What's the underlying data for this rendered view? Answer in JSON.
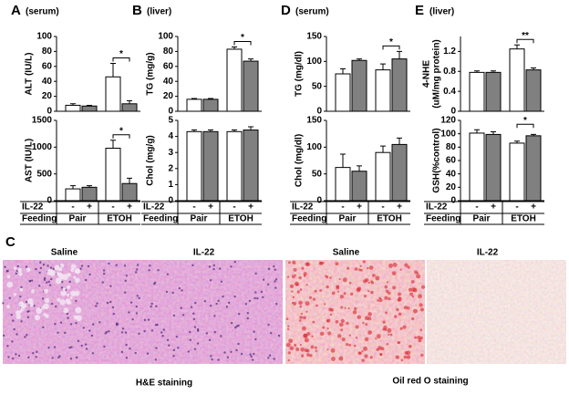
{
  "panels": [
    {
      "letter": "A",
      "label": "(serum)",
      "il22": {
        "label": "IL-22",
        "values": [
          "-",
          "+",
          "-",
          "+"
        ]
      },
      "feeding": {
        "label": "Feeding",
        "groups": [
          "Pair",
          "ETOH"
        ]
      }
    },
    {
      "letter": "B",
      "label": "(liver)",
      "il22": {
        "label": "IL-22",
        "values": [
          "-",
          "+",
          "-",
          "+"
        ]
      },
      "feeding": {
        "label": "Feeding",
        "groups": [
          "Pair",
          "ETOH"
        ]
      }
    },
    {
      "letter": "D",
      "label": "(serum)",
      "il22": {
        "label": "IL-22",
        "values": [
          "-",
          "+",
          "-",
          "+"
        ]
      },
      "feeding": {
        "label": "Feeding",
        "groups": [
          "Pair",
          "ETOH"
        ]
      }
    },
    {
      "letter": "E",
      "label": "(liver)",
      "il22": {
        "label": "IL-22",
        "values": [
          "-",
          "+",
          "-",
          "+"
        ]
      },
      "feeding": {
        "label": "Feeding",
        "groups": [
          "Pair",
          "ETOH"
        ]
      }
    }
  ],
  "chart_data": [
    {
      "type": "bar",
      "ylabel": "ALT (IU/L)",
      "values": [
        8,
        7,
        46,
        10
      ],
      "errors": [
        2,
        1,
        18,
        4
      ],
      "colors": [
        "#ffffff",
        "#808080",
        "#ffffff",
        "#808080"
      ],
      "ylim": [
        0,
        100
      ],
      "yticks": [
        0,
        20,
        40,
        60,
        80,
        100
      ],
      "significance": {
        "label": "*",
        "between": [
          2,
          3
        ]
      }
    },
    {
      "type": "bar",
      "ylabel": "AST (IU/L)",
      "values": [
        220,
        250,
        980,
        320
      ],
      "errors": [
        60,
        30,
        150,
        100
      ],
      "colors": [
        "#ffffff",
        "#808080",
        "#ffffff",
        "#808080"
      ],
      "ylim": [
        0,
        1500
      ],
      "yticks": [
        0,
        500,
        1000,
        1500
      ],
      "significance": {
        "label": "*",
        "between": [
          2,
          3
        ]
      }
    },
    {
      "type": "bar",
      "ylabel": "TG (mg/g)",
      "values": [
        16,
        16,
        83,
        67
      ],
      "errors": [
        1,
        1,
        3,
        3
      ],
      "colors": [
        "#ffffff",
        "#808080",
        "#ffffff",
        "#808080"
      ],
      "ylim": [
        0,
        100
      ],
      "yticks": [
        0,
        20,
        40,
        60,
        80,
        100
      ],
      "significance": {
        "label": "*",
        "between": [
          2,
          3
        ]
      }
    },
    {
      "type": "bar",
      "ylabel": "Chol (mg/g)",
      "values": [
        4.3,
        4.3,
        4.3,
        4.4
      ],
      "errors": [
        0.1,
        0.1,
        0.1,
        0.2
      ],
      "colors": [
        "#ffffff",
        "#808080",
        "#ffffff",
        "#808080"
      ],
      "ylim": [
        0,
        5
      ],
      "yticks": [
        0,
        1,
        2,
        3,
        4,
        5
      ]
    },
    {
      "type": "bar",
      "ylabel": "TG (mg/dl)",
      "values": [
        75,
        102,
        83,
        105
      ],
      "errors": [
        10,
        3,
        12,
        15
      ],
      "colors": [
        "#ffffff",
        "#808080",
        "#ffffff",
        "#808080"
      ],
      "ylim": [
        0,
        150
      ],
      "yticks": [
        0,
        50,
        100,
        150
      ],
      "significance": {
        "label": "*",
        "between": [
          2,
          3
        ]
      }
    },
    {
      "type": "bar",
      "ylabel": "Chol (mg/dl)",
      "values": [
        62,
        55,
        90,
        105
      ],
      "errors": [
        25,
        10,
        12,
        12
      ],
      "colors": [
        "#ffffff",
        "#808080",
        "#ffffff",
        "#808080"
      ],
      "ylim": [
        0,
        150
      ],
      "yticks": [
        0,
        50,
        100,
        150
      ]
    },
    {
      "type": "bar",
      "ylabel": [
        "4-NHE",
        "(uM/mg protein)"
      ],
      "values": [
        0.78,
        0.78,
        1.25,
        0.83
      ],
      "errors": [
        0.03,
        0.03,
        0.08,
        0.04
      ],
      "colors": [
        "#ffffff",
        "#808080",
        "#ffffff",
        "#808080"
      ],
      "ylim": [
        0,
        1.5
      ],
      "yticks": [
        0,
        0.4,
        0.8,
        1.2
      ],
      "significance": {
        "label": "**",
        "between": [
          2,
          3
        ]
      }
    },
    {
      "type": "bar",
      "ylabel": "GSH(%control)",
      "values": [
        101,
        99,
        86,
        97
      ],
      "errors": [
        5,
        4,
        3,
        2
      ],
      "colors": [
        "#ffffff",
        "#808080",
        "#ffffff",
        "#808080"
      ],
      "ylim": [
        0,
        120
      ],
      "yticks": [
        0,
        20,
        40,
        60,
        80,
        100,
        120
      ],
      "significance": {
        "label": "*",
        "between": [
          2,
          3
        ]
      }
    }
  ],
  "histology": {
    "letter": "C",
    "images": [
      "Saline",
      "IL-22",
      "Saline",
      "IL-22"
    ],
    "captions": [
      "H&E staining",
      "Oil red O staining"
    ]
  }
}
